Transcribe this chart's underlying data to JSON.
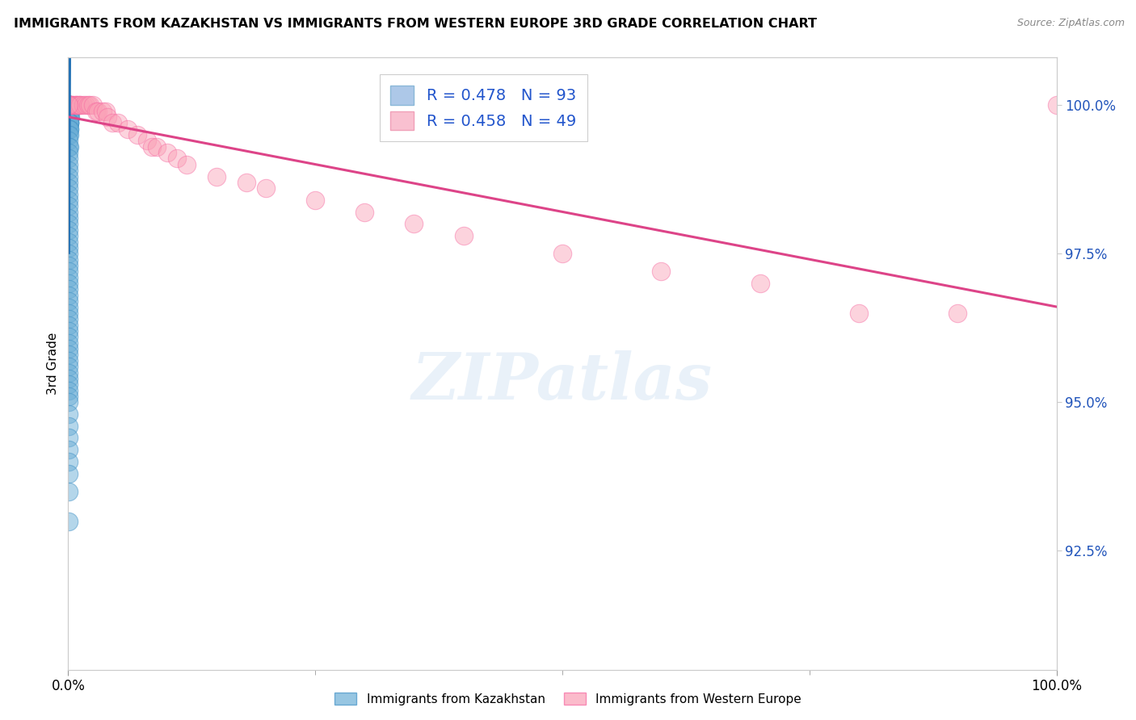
{
  "title": "IMMIGRANTS FROM KAZAKHSTAN VS IMMIGRANTS FROM WESTERN EUROPE 3RD GRADE CORRELATION CHART",
  "source": "Source: ZipAtlas.com",
  "ylabel": "3rd Grade",
  "xlim": [
    0.0,
    1.0
  ],
  "ylim": [
    0.905,
    1.008
  ],
  "yticks": [
    0.925,
    0.95,
    0.975,
    1.0
  ],
  "ytick_labels": [
    "92.5%",
    "95.0%",
    "97.5%",
    "100.0%"
  ],
  "color_kaz": "#6baed6",
  "color_kaz_edge": "#4292c6",
  "color_kaz_line": "#2171b5",
  "color_weu": "#fa9fb5",
  "color_weu_edge": "#f768a1",
  "color_weu_line": "#dd4488",
  "background_color": "#ffffff",
  "grid_color": "#cccccc",
  "legend_label1": "R = 0.478   N = 93",
  "legend_label2": "R = 0.458   N = 49",
  "legend_facecolor1": "#adc8e8",
  "legend_facecolor2": "#f9c0d0",
  "bottom_label1": "Immigrants from Kazakhstan",
  "bottom_label2": "Immigrants from Western Europe",
  "kaz_x": [
    0.0008,
    0.0009,
    0.001,
    0.001,
    0.001,
    0.001,
    0.0012,
    0.0013,
    0.0014,
    0.0015,
    0.0008,
    0.0009,
    0.001,
    0.001,
    0.0012,
    0.0013,
    0.0015,
    0.0017,
    0.002,
    0.002,
    0.0008,
    0.0009,
    0.001,
    0.001,
    0.001,
    0.0012,
    0.0015,
    0.002,
    0.0008,
    0.0009,
    0.001,
    0.001,
    0.0012,
    0.0015,
    0.0008,
    0.001,
    0.0012,
    0.0008,
    0.001,
    0.0008,
    0.0008,
    0.001,
    0.0008,
    0.0009,
    0.0008,
    0.0008,
    0.0008,
    0.0008,
    0.0008,
    0.0008,
    0.0008,
    0.0008,
    0.0008,
    0.0008,
    0.0008,
    0.0008,
    0.0008,
    0.0008,
    0.0008,
    0.0008,
    0.0008,
    0.0008,
    0.0008,
    0.0008,
    0.0008,
    0.0008,
    0.0008,
    0.0008,
    0.0008,
    0.0008,
    0.0008,
    0.0008,
    0.0008,
    0.0008,
    0.0008,
    0.0008,
    0.0008,
    0.0008,
    0.0008,
    0.0008,
    0.0008,
    0.0008,
    0.0008,
    0.0008,
    0.0008,
    0.0008,
    0.0008,
    0.0008,
    0.0008,
    0.0008,
    0.0008,
    0.0008,
    0.0008
  ],
  "kaz_y": [
    1.0,
    1.0,
    1.0,
    1.0,
    1.0,
    1.0,
    1.0,
    1.0,
    1.0,
    1.0,
    0.999,
    0.999,
    0.999,
    0.999,
    0.999,
    0.999,
    0.999,
    0.999,
    0.999,
    0.999,
    0.998,
    0.998,
    0.998,
    0.998,
    0.998,
    0.998,
    0.998,
    0.998,
    0.997,
    0.997,
    0.997,
    0.997,
    0.997,
    0.997,
    0.996,
    0.996,
    0.996,
    0.995,
    0.995,
    0.994,
    0.993,
    0.993,
    0.992,
    0.991,
    0.99,
    0.989,
    0.988,
    0.987,
    0.986,
    0.985,
    0.984,
    0.983,
    0.982,
    0.981,
    0.98,
    0.979,
    0.978,
    0.977,
    0.976,
    0.975,
    0.974,
    0.973,
    0.972,
    0.971,
    0.97,
    0.969,
    0.968,
    0.967,
    0.966,
    0.965,
    0.964,
    0.963,
    0.962,
    0.961,
    0.96,
    0.959,
    0.958,
    0.957,
    0.956,
    0.955,
    0.954,
    0.953,
    0.952,
    0.951,
    0.95,
    0.948,
    0.946,
    0.944,
    0.942,
    0.94,
    0.938,
    0.935,
    0.93
  ],
  "weu_x": [
    0.0008,
    0.001,
    0.001,
    0.0012,
    0.0015,
    0.002,
    0.003,
    0.004,
    0.005,
    0.007,
    0.008,
    0.009,
    0.01,
    0.012,
    0.012,
    0.015,
    0.018,
    0.02,
    0.022,
    0.025,
    0.028,
    0.03,
    0.035,
    0.038,
    0.04,
    0.045,
    0.05,
    0.06,
    0.07,
    0.08,
    0.085,
    0.09,
    0.1,
    0.11,
    0.12,
    0.15,
    0.18,
    0.2,
    0.25,
    0.3,
    0.35,
    0.4,
    0.5,
    0.6,
    0.7,
    0.8,
    0.9,
    1.0,
    0.0009
  ],
  "weu_y": [
    1.0,
    1.0,
    1.0,
    1.0,
    1.0,
    1.0,
    1.0,
    1.0,
    1.0,
    1.0,
    1.0,
    1.0,
    1.0,
    1.0,
    1.0,
    1.0,
    1.0,
    1.0,
    1.0,
    1.0,
    0.999,
    0.999,
    0.999,
    0.999,
    0.998,
    0.997,
    0.997,
    0.996,
    0.995,
    0.994,
    0.993,
    0.993,
    0.992,
    0.991,
    0.99,
    0.988,
    0.987,
    0.986,
    0.984,
    0.982,
    0.98,
    0.978,
    0.975,
    0.972,
    0.97,
    0.965,
    0.965,
    1.0,
    1.0
  ]
}
